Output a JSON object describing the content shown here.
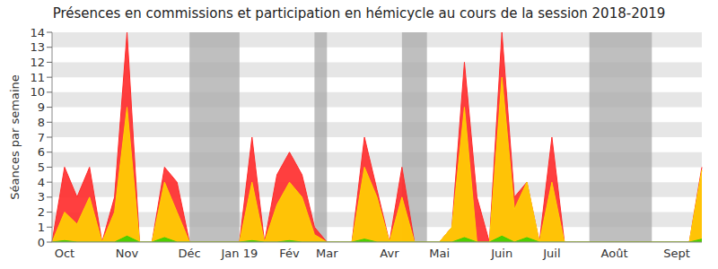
{
  "chart_data": {
    "type": "area",
    "title": "Présences en commissions et participation en hémicycle au cours de la session 2018-2019",
    "y_label": "Séances par semaine",
    "categories": [
      null,
      "Oct",
      null,
      null,
      null,
      null,
      "Nov",
      null,
      null,
      null,
      null,
      "Déc",
      null,
      null,
      null,
      "Jan 19",
      null,
      null,
      null,
      "Fév",
      null,
      null,
      "Mar",
      null,
      null,
      null,
      null,
      "Avr",
      null,
      null,
      null,
      "Mai",
      null,
      null,
      null,
      null,
      "Juin",
      null,
      null,
      null,
      "Juil",
      null,
      null,
      null,
      null,
      "Août",
      null,
      null,
      null,
      null,
      "Sept",
      null,
      null
    ],
    "series": [
      {
        "color": "#ff2a2a",
        "values": [
          0,
          5,
          3,
          5,
          0,
          3,
          14,
          0,
          0,
          5,
          4,
          0,
          0,
          0,
          0,
          0,
          7,
          0,
          4.5,
          6,
          4.5,
          1,
          0,
          0,
          0,
          7,
          3.5,
          0,
          5,
          0,
          0,
          0,
          1,
          12,
          3,
          0,
          14,
          3,
          4,
          0,
          7,
          0,
          0,
          0,
          0,
          0,
          0,
          0,
          0,
          0,
          0,
          0,
          5
        ]
      },
      {
        "color": "#ffd200",
        "values": [
          0,
          2,
          1.2,
          3,
          0,
          2,
          9,
          0,
          0,
          4,
          2,
          0,
          0,
          0,
          0,
          0,
          4,
          0,
          2.5,
          4,
          3,
          0.5,
          0,
          0,
          0,
          5,
          3,
          0,
          3,
          0,
          0,
          0,
          1,
          9,
          0,
          0,
          11,
          2.2,
          4,
          0,
          4,
          0,
          0,
          0,
          0,
          0,
          0,
          0,
          0,
          0,
          0,
          0,
          4.8
        ]
      },
      {
        "color": "#3cd000",
        "values": [
          0,
          0.1,
          0,
          0,
          0,
          0,
          0.4,
          0,
          0,
          0.3,
          0,
          0,
          0,
          0,
          0,
          0,
          0.1,
          0,
          0,
          0.1,
          0,
          0,
          0,
          0,
          0,
          0.2,
          0,
          0,
          0,
          0,
          0,
          0,
          0,
          0.3,
          0,
          0,
          0.4,
          0,
          0.3,
          0,
          0,
          0,
          0,
          0,
          0,
          0,
          0,
          0,
          0,
          0,
          0,
          0,
          0.2
        ]
      }
    ],
    "shaded_ranges": [
      [
        11,
        15
      ],
      [
        21,
        22
      ],
      [
        28,
        30
      ],
      [
        43,
        48
      ]
    ],
    "ylim": [
      0,
      14
    ],
    "yticks": [
      0,
      1,
      2,
      3,
      4,
      5,
      6,
      7,
      8,
      9,
      10,
      11,
      12,
      13,
      14
    ],
    "grid": true
  }
}
